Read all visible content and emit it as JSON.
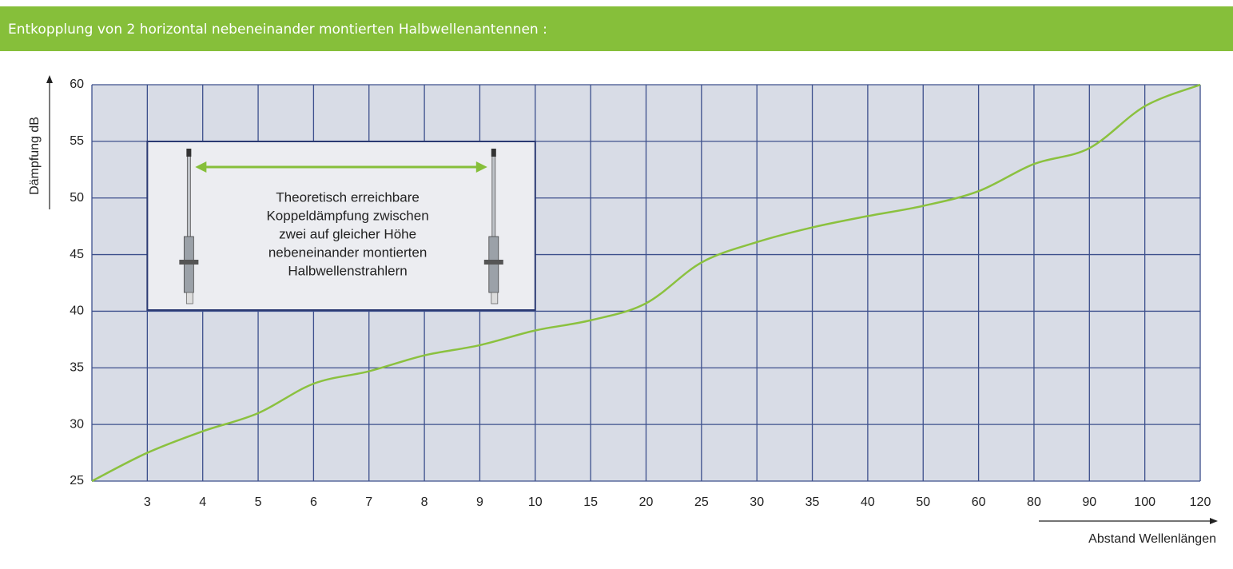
{
  "chart_data": {
    "type": "line",
    "title": "Entkopplung von 2 horizontal nebeneinander montierten Halbwellenantennen :",
    "y_label": "Dämpfung dB",
    "x_label": "Abstand Wellenlängen",
    "annotation": [
      "Theoretisch erreichbare",
      "Koppeldämpfung zwischen",
      "zwei auf gleicher Höhe",
      "nebeneinander montierten",
      "Halbwellenstrahlern"
    ],
    "categories": [
      null,
      "3",
      "4",
      "5",
      "6",
      "7",
      "8",
      "9",
      "10",
      "15",
      "20",
      "25",
      "30",
      "35",
      "40",
      "50",
      "60",
      "80",
      "90",
      "100",
      "120"
    ],
    "series": [
      {
        "color": "#8bc13f",
        "values": [
          25,
          27.5,
          29.4,
          31,
          33.6,
          34.7,
          36.1,
          37,
          38.3,
          39.2,
          40.7,
          44.3,
          46.1,
          47.4,
          48.4,
          49.3,
          50.6,
          53,
          54.4,
          58.1,
          60
        ]
      }
    ],
    "ylim": [
      25,
      60
    ],
    "yticks": [
      25,
      30,
      35,
      40,
      45,
      50,
      55,
      60
    ],
    "grid": true
  }
}
